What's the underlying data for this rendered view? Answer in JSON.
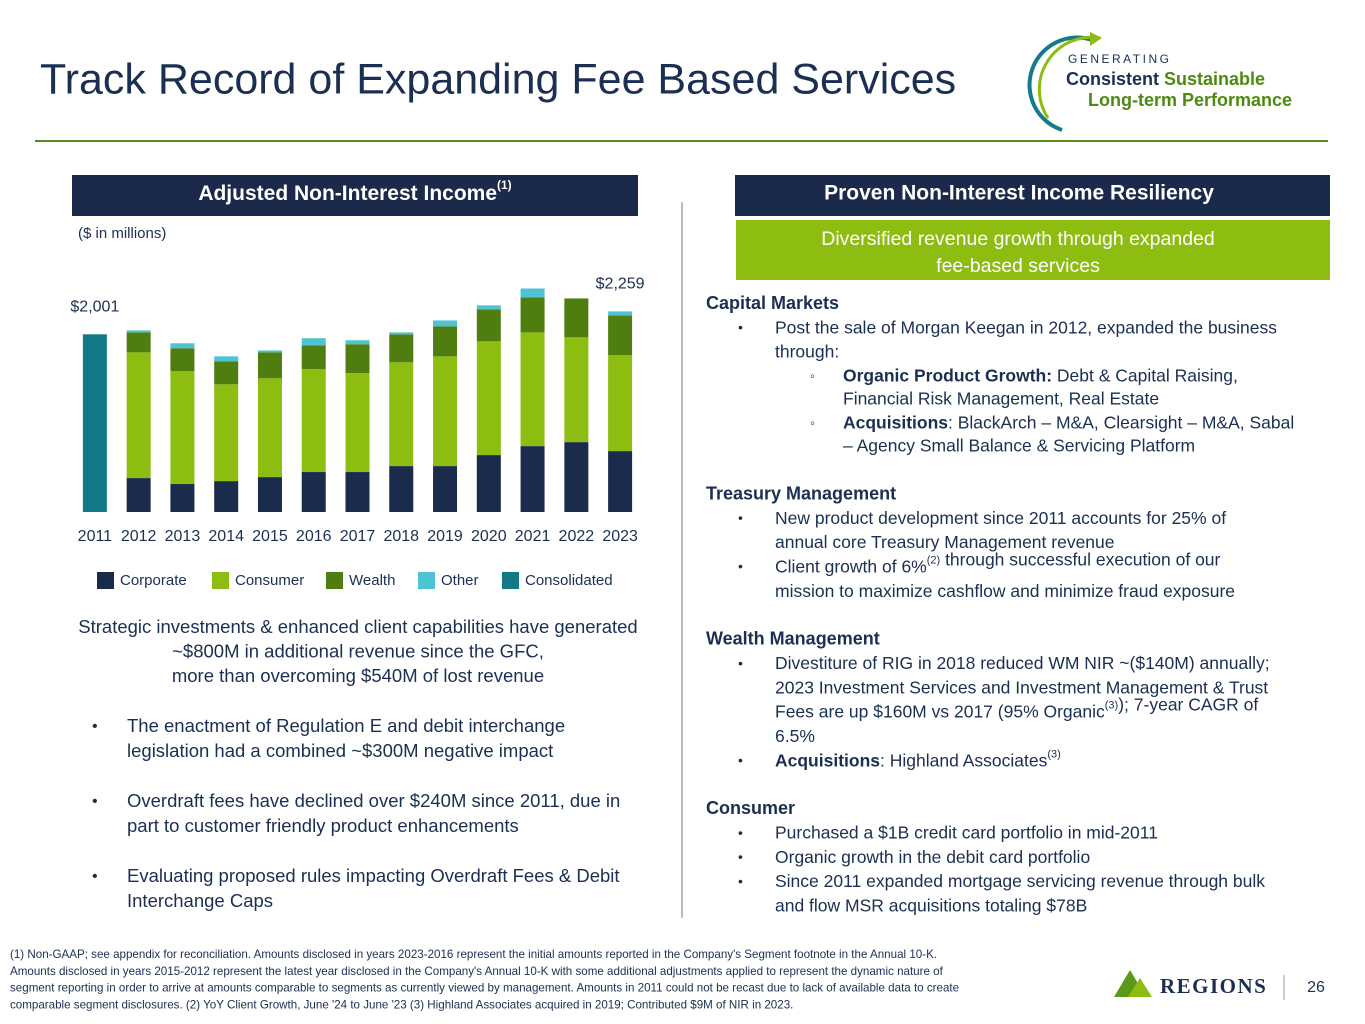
{
  "header": {
    "title": "Track Record of Expanding Fee Based Services",
    "logo": {
      "top": "GENERATING",
      "line1a": "Consistent",
      "line1b": "Sustainable",
      "line2": "Long-term Performance"
    }
  },
  "left": {
    "heading": "Adjusted Non-Interest Income",
    "heading_sup": "(1)",
    "unit": "($ in millions)",
    "summary": [
      "Strategic investments & enhanced client capabilities have generated",
      "~$800M in additional revenue since the GFC,",
      "more than overcoming $540M of lost revenue"
    ],
    "bullets": [
      [
        "The enactment of Regulation E and debit interchange",
        "legislation had a combined ~$300M negative impact"
      ],
      [
        "Overdraft fees have declined over $240M since 2011, due in",
        "part to customer friendly product enhancements"
      ],
      [
        "Evaluating proposed rules impacting Overdraft Fees & Debit",
        "Interchange Caps"
      ]
    ]
  },
  "chart_data": {
    "type": "stacked_bar",
    "categories": [
      "2011",
      "2012",
      "2013",
      "2014",
      "2015",
      "2016",
      "2017",
      "2018",
      "2019",
      "2020",
      "2021",
      "2022",
      "2023"
    ],
    "series": [
      {
        "name": "Corporate",
        "color": "#1a2b4c",
        "values": [
          null,
          382,
          315,
          348,
          393,
          450,
          450,
          517,
          517,
          641,
          742,
          787,
          686
        ]
      },
      {
        "name": "Consumer",
        "color": "#8cbd10",
        "values": [
          null,
          1416,
          1270,
          1090,
          1113,
          1158,
          1113,
          1169,
          1236,
          1281,
          1281,
          1180,
          1079
        ]
      },
      {
        "name": "Wealth",
        "color": "#4f7d10",
        "values": [
          null,
          225,
          259,
          259,
          292,
          270,
          326,
          315,
          337,
          360,
          393,
          438,
          449
        ]
      },
      {
        "name": "Other",
        "color": "#4dc3d3",
        "values": [
          null,
          22,
          56,
          56,
          22,
          79,
          45,
          22,
          67,
          45,
          101,
          0,
          45
        ]
      },
      {
        "name": "Consolidated",
        "color": "#147987",
        "values": [
          2001,
          null,
          null,
          null,
          null,
          null,
          null,
          null,
          null,
          null,
          null,
          null,
          null
        ]
      }
    ],
    "totals": [
      2001,
      null,
      null,
      null,
      null,
      null,
      null,
      null,
      null,
      null,
      null,
      null,
      2259
    ],
    "total_labels": [
      "$2,001",
      null,
      null,
      null,
      null,
      null,
      null,
      null,
      null,
      null,
      null,
      null,
      "$2,259"
    ],
    "ylim": [
      0,
      2500
    ]
  },
  "right": {
    "heading": "Proven Non-Interest Income Resiliency",
    "banner": [
      "Diversified revenue growth through expanded",
      "fee-based services"
    ],
    "sections": [
      {
        "heading": "Capital Markets",
        "items": [
          {
            "lines": [
              [
                "Post the sale of Morgan Keegan in 2012, expanded the business"
              ],
              [
                "through:"
              ]
            ],
            "sub": [
              {
                "lines": [
                  [
                    {
                      "b": "Organic Product Growth:"
                    },
                    " Debt & Capital Raising,"
                  ],
                  [
                    "Financial Risk Management, Real Estate"
                  ]
                ]
              },
              {
                "lines": [
                  [
                    {
                      "b": "Acquisitions"
                    },
                    ": BlackArch – M&A, Clearsight – M&A, Sabal"
                  ],
                  [
                    "– Agency Small Balance & Servicing Platform"
                  ]
                ]
              }
            ]
          }
        ]
      },
      {
        "heading": "Treasury Management",
        "items": [
          {
            "lines": [
              [
                "New product development since 2011 accounts for 25% of"
              ],
              [
                "annual core Treasury Management revenue"
              ]
            ]
          },
          {
            "lines": [
              [
                "Client growth of 6%",
                {
                  "sup": "(2)"
                },
                " through successful execution of our"
              ],
              [
                "mission to maximize cashflow and minimize fraud exposure"
              ]
            ]
          }
        ]
      },
      {
        "heading": "Wealth Management",
        "items": [
          {
            "lines": [
              [
                "Divestiture of RIG in 2018 reduced WM NIR ~($140M) annually;"
              ],
              [
                "2023 Investment Services and Investment Management & Trust"
              ],
              [
                "Fees are up $160M vs 2017 (95% Organic",
                {
                  "sup": "(3)"
                },
                "); 7-year CAGR of"
              ],
              [
                "6.5%"
              ]
            ]
          },
          {
            "lines": [
              [
                {
                  "b": "Acquisitions"
                },
                ": Highland Associates",
                {
                  "sup": "(3)"
                }
              ]
            ]
          }
        ]
      },
      {
        "heading": "Consumer",
        "items": [
          {
            "lines": [
              [
                "Purchased a $1B credit card portfolio in mid-2011"
              ]
            ]
          },
          {
            "lines": [
              [
                "Organic growth in the debit card portfolio"
              ]
            ]
          },
          {
            "lines": [
              [
                "Since 2011 expanded mortgage servicing revenue through bulk"
              ],
              [
                "and flow MSR acquisitions totaling $78B"
              ]
            ]
          }
        ]
      }
    ]
  },
  "footnote": [
    "(1)  Non-GAAP; see appendix for reconciliation. Amounts disclosed in years 2023-2016 represent the initial amounts reported in the Company's Segment footnote in the Annual 10-K.",
    "Amounts disclosed in years 2015-2012 represent the latest year disclosed in the Company's Annual 10-K with some additional adjustments applied to represent the dynamic nature of",
    "segment reporting in order to arrive at amounts comparable to segments as currently viewed by management. Amounts in 2011 could not be recast due to lack of available data to create",
    "comparable segment disclosures. (2) YoY Client Growth, June '24 to June '23  (3) Highland Associates acquired in 2019; Contributed $9M of NIR in 2023."
  ],
  "brand": "REGIONS",
  "page_number": "26"
}
